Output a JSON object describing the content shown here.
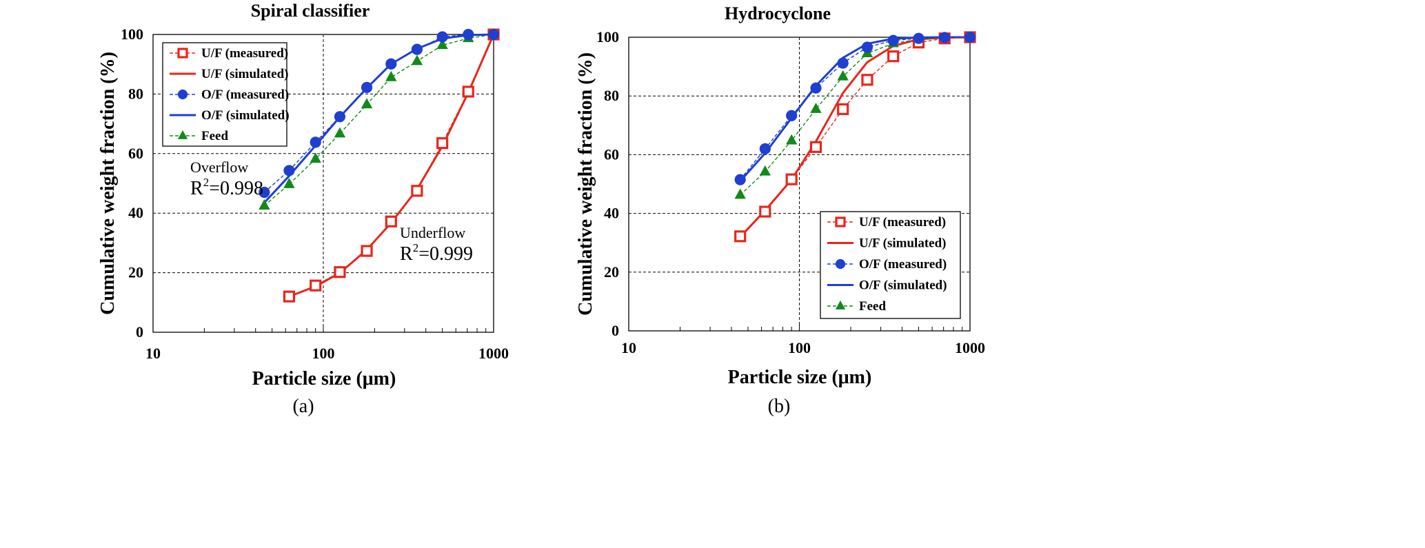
{
  "chart_data": [
    {
      "type": "line",
      "title": "Spiral classifier",
      "xlabel": "Particle size (μm)",
      "ylabel": "Cumulative weight fraction (%)",
      "xscale": "log",
      "xlim": [
        10,
        1000
      ],
      "ylim": [
        0,
        100
      ],
      "xticks": [
        "10",
        "100",
        "1000"
      ],
      "yticks": [
        "0",
        "20",
        "40",
        "60",
        "80",
        "100"
      ],
      "grid": "dashed",
      "legend": "top-left",
      "caption": "(a)",
      "annotations": [
        {
          "line1": "Overflow",
          "line2": "R",
          "sup": "2",
          "value": "=0.998"
        },
        {
          "line1": "Underflow",
          "line2": "R",
          "sup": "2",
          "value": "=0.999"
        }
      ],
      "series": [
        {
          "name": "U/F (measured)",
          "color": "#e8261c",
          "style": "dashed",
          "marker": "open-square",
          "x": [
            63,
            90,
            125,
            180,
            250,
            355,
            500,
            710,
            1000
          ],
          "y": [
            12,
            15.7,
            20.2,
            27.3,
            37.2,
            47.5,
            63.5,
            80.8,
            100
          ]
        },
        {
          "name": "U/F (simulated)",
          "color": "#e8261c",
          "style": "solid",
          "marker": "none",
          "x": [
            63,
            90,
            125,
            180,
            250,
            355,
            500,
            710,
            1000
          ],
          "y": [
            12,
            15.4,
            19.9,
            27.7,
            36.7,
            48.0,
            62.5,
            80.5,
            100
          ]
        },
        {
          "name": "O/F (measured)",
          "color": "#1f3fd0",
          "style": "dashed",
          "marker": "circle",
          "x": [
            45,
            63,
            90,
            125,
            180,
            250,
            355,
            500,
            710,
            1000
          ],
          "y": [
            47,
            54.3,
            63.8,
            72.4,
            82.2,
            90.1,
            95,
            99.2,
            100,
            100
          ]
        },
        {
          "name": "O/F (simulated)",
          "color": "#1f3fd0",
          "style": "solid",
          "marker": "none",
          "x": [
            45,
            63,
            90,
            125,
            180,
            250,
            355,
            500,
            710,
            1000
          ],
          "y": [
            43.5,
            52.5,
            62.7,
            72.3,
            82.0,
            90.1,
            95.2,
            98.6,
            99.8,
            100
          ]
        },
        {
          "name": "Feed",
          "color": "#118a1a",
          "style": "dashed",
          "marker": "triangle",
          "x": [
            45,
            63,
            90,
            125,
            180,
            250,
            355,
            500,
            710,
            1000
          ],
          "y": [
            42.5,
            49.7,
            58.2,
            66.7,
            76.5,
            85.6,
            91,
            96.4,
            98.7,
            100
          ]
        }
      ]
    },
    {
      "type": "line",
      "title": "Hydrocyclone",
      "xlabel": "Particle size (μm)",
      "ylabel": "Cumulative  weight  fraction (%)",
      "xscale": "log",
      "xlim": [
        10,
        1000
      ],
      "ylim": [
        0,
        100
      ],
      "xticks": [
        "10",
        "100",
        "1000"
      ],
      "yticks": [
        "0",
        "20",
        "40",
        "60",
        "80",
        "100"
      ],
      "grid": "dashed",
      "legend": "bottom-right",
      "caption": "(b)",
      "series": [
        {
          "name": "U/F (measured)",
          "color": "#e8261c",
          "style": "dashed",
          "marker": "open-square",
          "x": [
            45,
            63,
            90,
            125,
            180,
            250,
            355,
            500,
            710,
            1000
          ],
          "y": [
            32.2,
            40.6,
            51.6,
            62.6,
            75.5,
            85.5,
            93.5,
            98.2,
            99.6,
            100
          ]
        },
        {
          "name": "U/F (simulated)",
          "color": "#e8261c",
          "style": "solid",
          "marker": "none",
          "x": [
            45,
            63,
            90,
            125,
            180,
            250,
            355,
            500,
            710,
            1000
          ],
          "y": [
            32,
            41,
            51.5,
            64.5,
            81,
            91.5,
            97,
            99.3,
            99.9,
            100
          ]
        },
        {
          "name": "O/F (measured)",
          "color": "#1f3fd0",
          "style": "dashed",
          "marker": "circle",
          "x": [
            45,
            63,
            90,
            125,
            180,
            250,
            355,
            500,
            710,
            1000
          ],
          "y": [
            51.5,
            62,
            73.3,
            82.7,
            91.2,
            96.6,
            98.9,
            99.6,
            99.9,
            100
          ]
        },
        {
          "name": "O/F (simulated)",
          "color": "#1f3fd0",
          "style": "solid",
          "marker": "none",
          "x": [
            45,
            63,
            90,
            125,
            180,
            250,
            355,
            500,
            710,
            1000
          ],
          "y": [
            51,
            60.5,
            72.5,
            83.5,
            93,
            97.8,
            99.5,
            99.9,
            100,
            100
          ]
        },
        {
          "name": "Feed",
          "color": "#118a1a",
          "style": "dashed",
          "marker": "triangle",
          "x": [
            45,
            63,
            90,
            125,
            180,
            250,
            355,
            500,
            710,
            1000
          ],
          "y": [
            46.3,
            54.2,
            64.8,
            75.5,
            86.6,
            94.5,
            97.9,
            99.3,
            99.7,
            99.8
          ]
        }
      ]
    }
  ]
}
